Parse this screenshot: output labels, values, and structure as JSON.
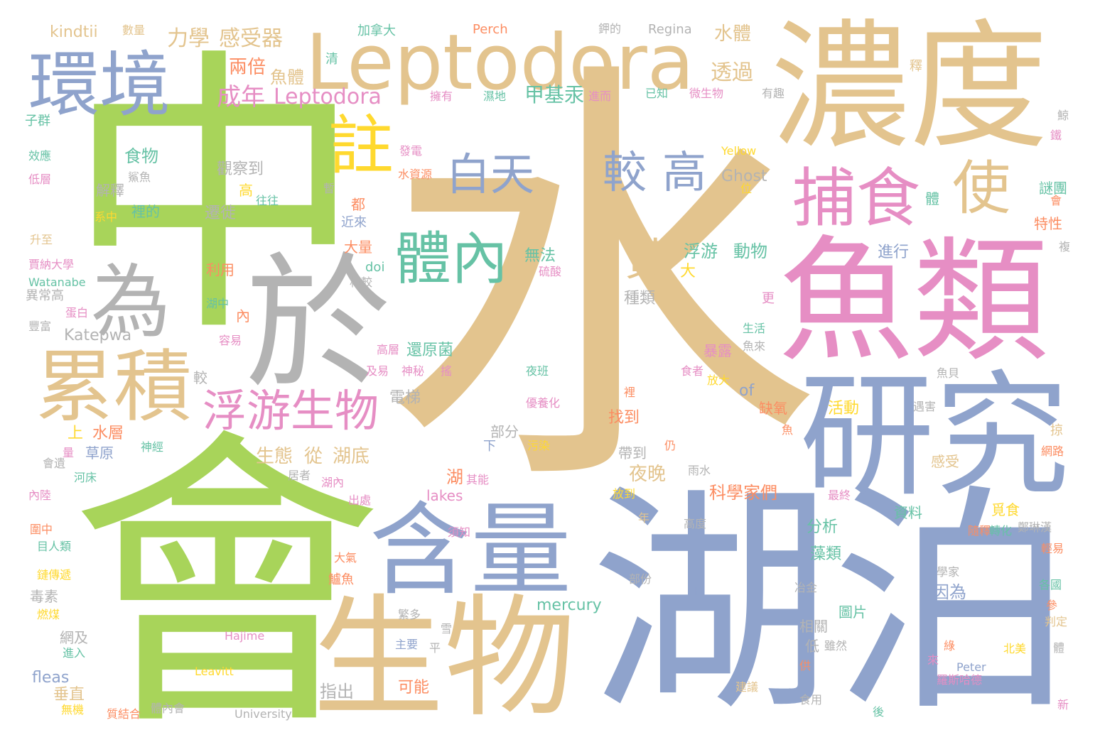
{
  "words": [
    {
      "text": "水",
      "color": "#e3c48e"
    },
    {
      "text": "中",
      "color": "#a8d45a"
    },
    {
      "text": "會",
      "color": "#a8d45a"
    },
    {
      "text": "湖泊",
      "color": "#8fa3cc"
    },
    {
      "text": "濃度",
      "color": "#e3c48e"
    },
    {
      "text": "魚類",
      "color": "#e68ec4"
    },
    {
      "text": "於",
      "color": "#b3b3b3"
    },
    {
      "text": "研究",
      "color": "#8fa3cc"
    },
    {
      "text": "生物",
      "color": "#e3c48e"
    },
    {
      "text": "Leptodora",
      "color": "#e3c48e"
    },
    {
      "text": "含量",
      "color": "#8fa3cc"
    },
    {
      "text": "環境",
      "color": "#8fa3cc"
    },
    {
      "text": "累積",
      "color": "#e3c48e"
    },
    {
      "text": "為",
      "color": "#b3b3b3"
    },
    {
      "text": "捕食",
      "color": "#e68ec4"
    },
    {
      "text": "使",
      "color": "#e3c48e"
    },
    {
      "text": "註",
      "color": "#ffd92f"
    },
    {
      "text": "體內",
      "color": "#66c2a5"
    },
    {
      "text": "浮游生物",
      "color": "#e68ec4"
    },
    {
      "text": "白天",
      "color": "#8fa3cc"
    },
    {
      "text": "較",
      "color": "#8fa3cc"
    },
    {
      "text": "高",
      "color": "#8fa3cc"
    },
    {
      "text": "黃",
      "color": "#e3c48e"
    },
    {
      "text": "成年",
      "color": "#e68ec4"
    },
    {
      "text": "Leptodora",
      "color": "#e68ec4"
    },
    {
      "text": "力學",
      "color": "#e3c48e"
    },
    {
      "text": "感受器",
      "color": "#e3c48e"
    },
    {
      "text": "甲基汞",
      "color": "#66c2a5"
    },
    {
      "text": "透過",
      "color": "#e3c48e"
    },
    {
      "text": "兩倍",
      "color": "#fc8d62"
    },
    {
      "text": "魚體",
      "color": "#e3c48e"
    },
    {
      "text": "水體",
      "color": "#e3c48e"
    },
    {
      "text": "kindtii",
      "color": "#e3c48e"
    },
    {
      "text": "數量",
      "color": "#e3c48e"
    },
    {
      "text": "加拿大",
      "color": "#66c2a5"
    },
    {
      "text": "Perch",
      "color": "#fc8d62"
    },
    {
      "text": "Regina",
      "color": "#b3b3b3"
    },
    {
      "text": "鉀的",
      "color": "#b3b3b3"
    },
    {
      "text": "清",
      "color": "#66c2a5"
    },
    {
      "text": "擁有",
      "color": "#e68ec4"
    },
    {
      "text": "濕地",
      "color": "#66c2a5"
    },
    {
      "text": "進而",
      "color": "#e68ec4"
    },
    {
      "text": "已知",
      "color": "#66c2a5"
    },
    {
      "text": "微生物",
      "color": "#e68ec4"
    },
    {
      "text": "有趣",
      "color": "#b3b3b3"
    },
    {
      "text": "釋",
      "color": "#e3c48e"
    },
    {
      "text": "子群",
      "color": "#66c2a5"
    },
    {
      "text": "食物",
      "color": "#66c2a5"
    },
    {
      "text": "觀察到",
      "color": "#b3b3b3"
    },
    {
      "text": "解釋",
      "color": "#b3b3b3"
    },
    {
      "text": "裡的",
      "color": "#66c2a5"
    },
    {
      "text": "遷徙",
      "color": "#b3b3b3"
    },
    {
      "text": "系中",
      "color": "#ffd92f"
    },
    {
      "text": "往往",
      "color": "#66c2a5"
    },
    {
      "text": "高",
      "color": "#ffd92f"
    },
    {
      "text": "效應",
      "color": "#66c2a5"
    },
    {
      "text": "低層",
      "color": "#e68ec4"
    },
    {
      "text": "鯊魚",
      "color": "#b3b3b3"
    },
    {
      "text": "發電",
      "color": "#e68ec4"
    },
    {
      "text": "水資源",
      "color": "#fc8d62"
    },
    {
      "text": "Yellow",
      "color": "#ffd92f"
    },
    {
      "text": "Ghost",
      "color": "#b3b3b3"
    },
    {
      "text": "暫",
      "color": "#b3b3b3"
    },
    {
      "text": "位",
      "color": "#ffd92f"
    },
    {
      "text": "都",
      "color": "#fc8d62"
    },
    {
      "text": "近來",
      "color": "#8fa3cc"
    },
    {
      "text": "大量",
      "color": "#fc8d62"
    },
    {
      "text": "doi",
      "color": "#66c2a5"
    },
    {
      "text": "相較",
      "color": "#b3b3b3"
    },
    {
      "text": "利用",
      "color": "#fc8d62"
    },
    {
      "text": "湖中",
      "color": "#66c2a5"
    },
    {
      "text": "內",
      "color": "#fc8d62"
    },
    {
      "text": "無法",
      "color": "#66c2a5"
    },
    {
      "text": "硫酸",
      "color": "#e68ec4"
    },
    {
      "text": "大",
      "color": "#ffd92f"
    },
    {
      "text": "浮游",
      "color": "#66c2a5"
    },
    {
      "text": "動物",
      "color": "#66c2a5"
    },
    {
      "text": "進行",
      "color": "#8fa3cc"
    },
    {
      "text": "種類",
      "color": "#b3b3b3"
    },
    {
      "text": "升至",
      "color": "#e3c48e"
    },
    {
      "text": "賈納大學",
      "color": "#e68ec4"
    },
    {
      "text": "Watanabe",
      "color": "#66c2a5"
    },
    {
      "text": "異常高",
      "color": "#b3b3b3"
    },
    {
      "text": "蛋白",
      "color": "#e68ec4"
    },
    {
      "text": "豐富",
      "color": "#b3b3b3"
    },
    {
      "text": "容易",
      "color": "#e68ec4"
    },
    {
      "text": "Katepwa",
      "color": "#b3b3b3"
    },
    {
      "text": "高層",
      "color": "#e68ec4"
    },
    {
      "text": "還原菌",
      "color": "#66c2a5"
    },
    {
      "text": "及易",
      "color": "#e68ec4"
    },
    {
      "text": "神秘",
      "color": "#e68ec4"
    },
    {
      "text": "搖",
      "color": "#e68ec4"
    },
    {
      "text": "夜班",
      "color": "#66c2a5"
    },
    {
      "text": "暴露",
      "color": "#e68ec4"
    },
    {
      "text": "食者",
      "color": "#e68ec4"
    },
    {
      "text": "生活",
      "color": "#66c2a5"
    },
    {
      "text": "魚來",
      "color": "#b3b3b3"
    },
    {
      "text": "較",
      "color": "#b3b3b3"
    },
    {
      "text": "電梯",
      "color": "#b3b3b3"
    },
    {
      "text": "優養化",
      "color": "#e68ec4"
    },
    {
      "text": "放大",
      "color": "#ffd92f"
    },
    {
      "text": "of",
      "color": "#8fa3cc"
    },
    {
      "text": "缺氧",
      "color": "#fc8d62"
    },
    {
      "text": "魚貝",
      "color": "#b3b3b3"
    },
    {
      "text": "活動",
      "color": "#ffd92f"
    },
    {
      "text": "上",
      "color": "#ffd92f"
    },
    {
      "text": "水層",
      "color": "#fc8d62"
    },
    {
      "text": "草原",
      "color": "#8fa3cc"
    },
    {
      "text": "神經",
      "color": "#66c2a5"
    },
    {
      "text": "部分",
      "color": "#b3b3b3"
    },
    {
      "text": "下",
      "color": "#8fa3cc"
    },
    {
      "text": "污染",
      "color": "#ffd92f"
    },
    {
      "text": "找到",
      "color": "#fc8d62"
    },
    {
      "text": "魚",
      "color": "#fc8d62"
    },
    {
      "text": "遇害",
      "color": "#b3b3b3"
    },
    {
      "text": "掠",
      "color": "#e3c48e"
    },
    {
      "text": "網路",
      "color": "#fc8d62"
    },
    {
      "text": "生態",
      "color": "#e3c48e"
    },
    {
      "text": "從",
      "color": "#e3c48e"
    },
    {
      "text": "湖底",
      "color": "#e3c48e"
    },
    {
      "text": "帶到",
      "color": "#b3b3b3"
    },
    {
      "text": "仍",
      "color": "#fc8d62"
    },
    {
      "text": "感受",
      "color": "#e3c48e"
    },
    {
      "text": "雨水",
      "color": "#b3b3b3"
    },
    {
      "text": "量",
      "color": "#e68ec4"
    },
    {
      "text": "會遺",
      "color": "#b3b3b3"
    },
    {
      "text": "河床",
      "color": "#66c2a5"
    },
    {
      "text": "內陸",
      "color": "#e68ec4"
    },
    {
      "text": "湖",
      "color": "#fc8d62"
    },
    {
      "text": "其能",
      "color": "#e68ec4"
    },
    {
      "text": "居者",
      "color": "#b3b3b3"
    },
    {
      "text": "湖內",
      "color": "#e68ec4"
    },
    {
      "text": "出處",
      "color": "#e68ec4"
    },
    {
      "text": "夜晚",
      "color": "#e3c48e"
    },
    {
      "text": "放到",
      "color": "#ffd92f"
    },
    {
      "text": "科學家們",
      "color": "#fc8d62"
    },
    {
      "text": "最終",
      "color": "#e68ec4"
    },
    {
      "text": "lakes",
      "color": "#e68ec4"
    },
    {
      "text": "資料",
      "color": "#66c2a5"
    },
    {
      "text": "覓食",
      "color": "#ffd92f"
    },
    {
      "text": "鄭琳漢",
      "color": "#b3b3b3"
    },
    {
      "text": "圍中",
      "color": "#fc8d62"
    },
    {
      "text": "目人類",
      "color": "#66c2a5"
    },
    {
      "text": "年",
      "color": "#e3c48e"
    },
    {
      "text": "高度",
      "color": "#b3b3b3"
    },
    {
      "text": "分析",
      "color": "#66c2a5"
    },
    {
      "text": "隨釋",
      "color": "#fc8d62"
    },
    {
      "text": "轉化",
      "color": "#66c2a5"
    },
    {
      "text": "須知",
      "color": "#e68ec4"
    },
    {
      "text": "藻類",
      "color": "#66c2a5"
    },
    {
      "text": "大氣",
      "color": "#fc8d62"
    },
    {
      "text": "鏈傳遞",
      "color": "#ffd92f"
    },
    {
      "text": "鱸魚",
      "color": "#fc8d62"
    },
    {
      "text": "部份",
      "color": "#b3b3b3"
    },
    {
      "text": "上",
      "color": "#8fa3cc"
    },
    {
      "text": "學家",
      "color": "#b3b3b3"
    },
    {
      "text": "因為",
      "color": "#8fa3cc"
    },
    {
      "text": "各國",
      "color": "#66c2a5"
    },
    {
      "text": "冶金",
      "color": "#b3b3b3"
    },
    {
      "text": "毒素",
      "color": "#b3b3b3"
    },
    {
      "text": "燃煤",
      "color": "#ffd92f"
    },
    {
      "text": "mercury",
      "color": "#66c2a5"
    },
    {
      "text": "繁多",
      "color": "#b3b3b3"
    },
    {
      "text": "圖片",
      "color": "#66c2a5"
    },
    {
      "text": "參",
      "color": "#fc8d62"
    },
    {
      "text": "相關",
      "color": "#b3b3b3"
    },
    {
      "text": "網及",
      "color": "#b3b3b3"
    },
    {
      "text": "進入",
      "color": "#66c2a5"
    },
    {
      "text": "Hajime",
      "color": "#e68ec4"
    },
    {
      "text": "雪",
      "color": "#b3b3b3"
    },
    {
      "text": "平",
      "color": "#b3b3b3"
    },
    {
      "text": "低",
      "color": "#b3b3b3"
    },
    {
      "text": "雖然",
      "color": "#b3b3b3"
    },
    {
      "text": "綠",
      "color": "#fc8d62"
    },
    {
      "text": "北美",
      "color": "#ffd92f"
    },
    {
      "text": "判定",
      "color": "#e3c48e"
    },
    {
      "text": "fleas",
      "color": "#8fa3cc"
    },
    {
      "text": "垂直",
      "color": "#e3c48e"
    },
    {
      "text": "無機",
      "color": "#ffd92f"
    },
    {
      "text": "Leavitt",
      "color": "#ffd92f"
    },
    {
      "text": "主要",
      "color": "#8fa3cc"
    },
    {
      "text": "來",
      "color": "#e68ec4"
    },
    {
      "text": "Peter",
      "color": "#8fa3cc"
    },
    {
      "text": "羅斯哈德",
      "color": "#e68ec4"
    },
    {
      "text": "供",
      "color": "#fc8d62"
    },
    {
      "text": "體",
      "color": "#b3b3b3"
    },
    {
      "text": "指出",
      "color": "#b3b3b3"
    },
    {
      "text": "可能",
      "color": "#fc8d62"
    },
    {
      "text": "建議",
      "color": "#e3c48e"
    },
    {
      "text": "食用",
      "color": "#b3b3b3"
    },
    {
      "text": "質結合",
      "color": "#fc8d62"
    },
    {
      "text": "體內會",
      "color": "#b3b3b3"
    },
    {
      "text": "University",
      "color": "#b3b3b3"
    },
    {
      "text": "後",
      "color": "#66c2a5"
    },
    {
      "text": "新",
      "color": "#e68ec4"
    },
    {
      "text": "謎團",
      "color": "#66c2a5"
    },
    {
      "text": "特性",
      "color": "#fc8d62"
    },
    {
      "text": "鯨",
      "color": "#b3b3b3"
    },
    {
      "text": "鐵",
      "color": "#e68ec4"
    },
    {
      "text": "會",
      "color": "#fc8d62"
    },
    {
      "text": "複",
      "color": "#b3b3b3"
    },
    {
      "text": "更",
      "color": "#e68ec4"
    },
    {
      "text": "體",
      "color": "#66c2a5"
    },
    {
      "text": "輕易",
      "color": "#fc8d62"
    },
    {
      "text": "裡",
      "color": "#fc8d62"
    }
  ]
}
